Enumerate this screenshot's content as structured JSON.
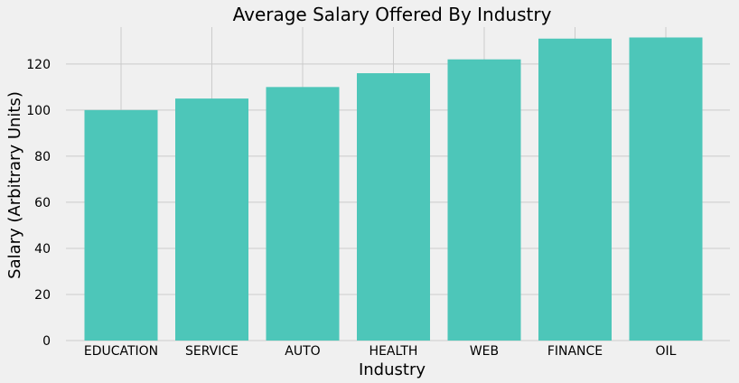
{
  "chart_data": {
    "type": "bar",
    "title": "Average Salary Offered By Industry",
    "xlabel": "Industry",
    "ylabel": "Salary (Arbitrary Units)",
    "categories": [
      "EDUCATION",
      "SERVICE",
      "AUTO",
      "HEALTH",
      "WEB",
      "FINANCE",
      "OIL"
    ],
    "values": [
      100,
      105,
      110,
      116,
      122,
      131,
      131.5
    ],
    "ylim": [
      0,
      136
    ],
    "yticks": [
      0,
      20,
      40,
      60,
      80,
      100,
      120
    ],
    "grid": true,
    "bar_color": "#4dc6b9",
    "background_color": "#f0f0f0"
  }
}
